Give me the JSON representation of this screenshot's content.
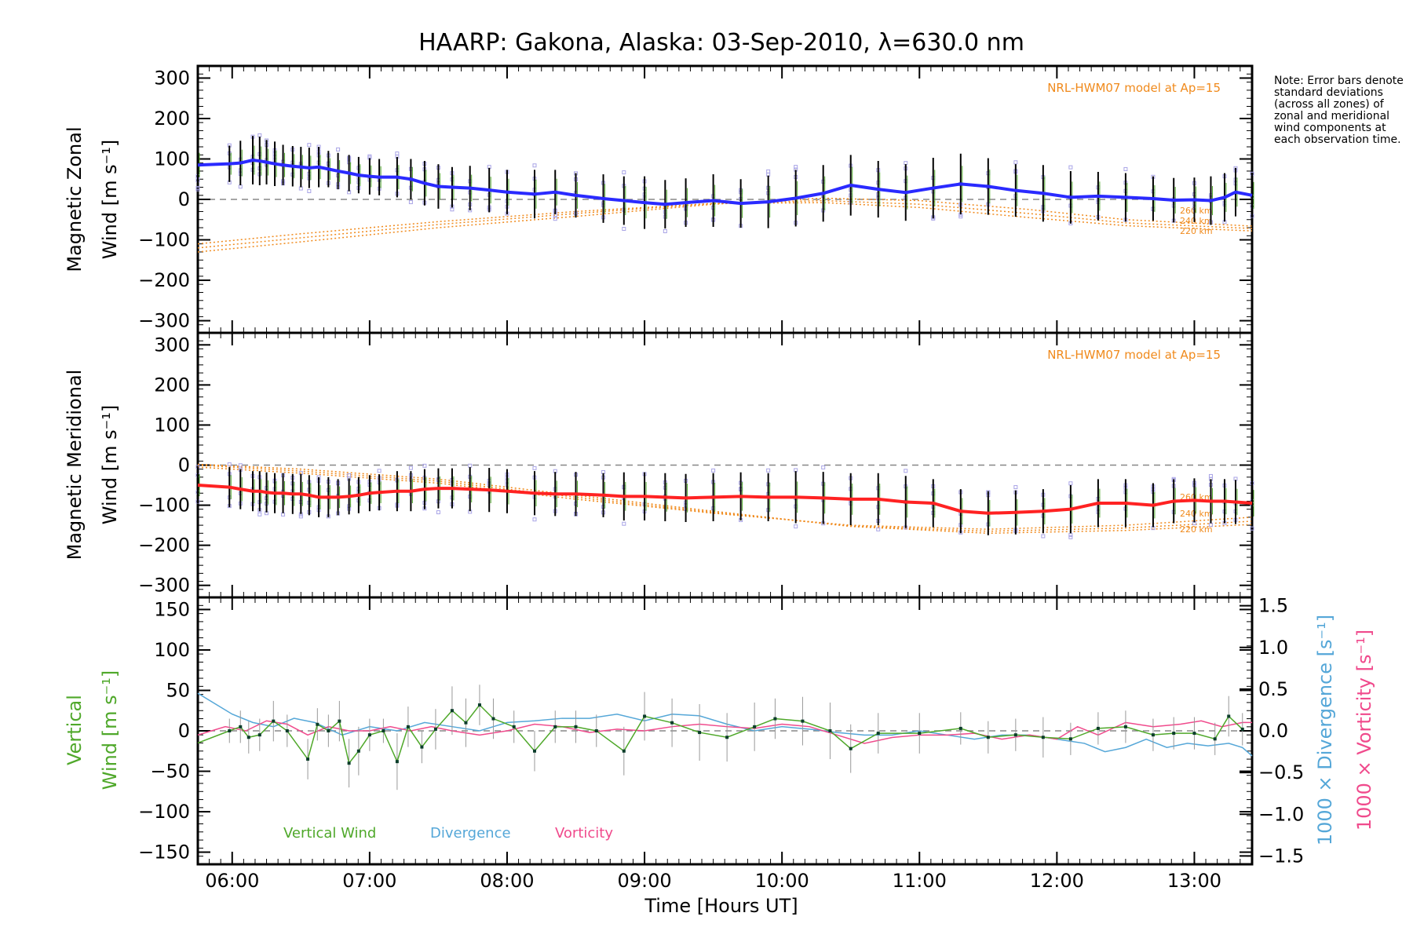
{
  "title": "HAARP: Gakona,  Alaska: 03-Sep-2010, λ=630.0 nm",
  "note": "Note: Error bars denote standard deviations (across all zones) of zonal and meridional wind components at each observation time.",
  "xlabel": "Time [Hours UT]",
  "colors": {
    "zonal": "#2a2aff",
    "meridional": "#ff2222",
    "model": "#f08a1c",
    "samples": "#a9a4e6",
    "vertical": "#4fa82a",
    "divergence": "#55a7d8",
    "vorticity": "#f04a8c"
  },
  "chart_data": [
    {
      "type": "line",
      "panel": "zonal",
      "ylabel_line1": "Magnetic Zonal",
      "ylabel_line2": "Wind [m s⁻¹]",
      "xlim": [
        5.75,
        13.42
      ],
      "ylim": [
        -330,
        330
      ],
      "x_ticks": [
        6,
        7,
        8,
        9,
        10,
        11,
        12,
        13
      ],
      "x_tick_labels": [
        "06:00",
        "07:00",
        "08:00",
        "09:00",
        "10:00",
        "11:00",
        "12:00",
        "13:00"
      ],
      "y_ticks": [
        -300,
        -200,
        -100,
        0,
        100,
        200,
        300
      ],
      "model_label": "NRL-HWM07 model at Ap=15",
      "model_altitudes": [
        "260 km",
        "240 km",
        "220 km"
      ],
      "series": [
        {
          "x": [
            5.75,
            5.98,
            6.06,
            6.15,
            6.2,
            6.25,
            6.31,
            6.37,
            6.44,
            6.5,
            6.56,
            6.63,
            6.7,
            6.77,
            6.85,
            6.92,
            7.0,
            7.07,
            7.2,
            7.3,
            7.4,
            7.5,
            7.6,
            7.73,
            7.87,
            8.0,
            8.2,
            8.35,
            8.5,
            8.7,
            8.85,
            9.0,
            9.15,
            9.3,
            9.5,
            9.7,
            9.9,
            10.1,
            10.3,
            10.5,
            10.7,
            10.9,
            11.1,
            11.3,
            11.5,
            11.7,
            11.9,
            12.1,
            12.3,
            12.5,
            12.7,
            12.85,
            13.0,
            13.12,
            13.22,
            13.3,
            13.42
          ],
          "values": [
            85,
            88,
            90,
            97,
            95,
            92,
            88,
            85,
            82,
            80,
            78,
            80,
            75,
            70,
            65,
            60,
            57,
            55,
            55,
            50,
            40,
            32,
            30,
            28,
            23,
            18,
            13,
            18,
            10,
            2,
            -3,
            -8,
            -12,
            -8,
            -3,
            -10,
            -6,
            3,
            15,
            35,
            25,
            17,
            28,
            38,
            32,
            22,
            15,
            5,
            8,
            5,
            2,
            -2,
            -1,
            -3,
            5,
            18,
            10
          ],
          "error": [
            50,
            45,
            55,
            60,
            60,
            55,
            55,
            50,
            50,
            50,
            50,
            50,
            45,
            45,
            45,
            45,
            45,
            45,
            50,
            50,
            55,
            55,
            50,
            55,
            55,
            55,
            60,
            55,
            55,
            60,
            60,
            65,
            60,
            60,
            65,
            60,
            65,
            70,
            70,
            75,
            70,
            70,
            75,
            75,
            70,
            65,
            70,
            65,
            60,
            60,
            55,
            55,
            55,
            60,
            60,
            60,
            55
          ]
        }
      ],
      "model_curves": [
        {
          "x": [
            5.75,
            6.5,
            7.5,
            8.5,
            9.5,
            10.3,
            11.0,
            11.8,
            12.5,
            13.42
          ],
          "values": [
            -110,
            -85,
            -55,
            -30,
            -10,
            -8,
            -20,
            -45,
            -65,
            -78
          ]
        },
        {
          "x": [
            5.75,
            6.5,
            7.5,
            8.5,
            9.5,
            10.3,
            11.0,
            11.8,
            12.5,
            13.42
          ],
          "values": [
            -120,
            -95,
            -62,
            -35,
            -10,
            -3,
            -12,
            -35,
            -58,
            -72
          ]
        },
        {
          "x": [
            5.75,
            6.5,
            7.5,
            8.5,
            9.5,
            10.3,
            11.0,
            11.8,
            12.5,
            13.42
          ],
          "values": [
            -130,
            -105,
            -70,
            -42,
            -12,
            3,
            -3,
            -25,
            -50,
            -66
          ]
        }
      ]
    },
    {
      "type": "line",
      "panel": "meridional",
      "ylabel_line1": "Magnetic Meridional",
      "ylabel_line2": "Wind [m s⁻¹]",
      "xlim": [
        5.75,
        13.42
      ],
      "ylim": [
        -330,
        330
      ],
      "y_ticks": [
        -300,
        -200,
        -100,
        0,
        100,
        200,
        300
      ],
      "model_label": "NRL-HWM07 model at Ap=15",
      "model_altitudes": [
        "260 km",
        "240 km",
        "220 km"
      ],
      "series": [
        {
          "x": [
            5.75,
            5.98,
            6.06,
            6.15,
            6.2,
            6.25,
            6.31,
            6.37,
            6.44,
            6.5,
            6.56,
            6.63,
            6.7,
            6.77,
            6.85,
            6.92,
            7.0,
            7.07,
            7.2,
            7.3,
            7.4,
            7.5,
            7.6,
            7.73,
            7.87,
            8.0,
            8.2,
            8.35,
            8.5,
            8.7,
            8.85,
            9.0,
            9.15,
            9.3,
            9.5,
            9.7,
            9.9,
            10.1,
            10.3,
            10.5,
            10.7,
            10.9,
            11.1,
            11.3,
            11.5,
            11.7,
            11.9,
            12.1,
            12.3,
            12.5,
            12.7,
            12.85,
            13.0,
            13.12,
            13.22,
            13.3,
            13.42
          ],
          "values": [
            -50,
            -55,
            -60,
            -65,
            -65,
            -68,
            -70,
            -70,
            -72,
            -72,
            -75,
            -80,
            -80,
            -80,
            -78,
            -75,
            -70,
            -68,
            -65,
            -65,
            -60,
            -58,
            -58,
            -60,
            -62,
            -65,
            -70,
            -72,
            -72,
            -75,
            -78,
            -78,
            -80,
            -82,
            -80,
            -78,
            -80,
            -80,
            -82,
            -85,
            -85,
            -92,
            -95,
            -115,
            -120,
            -118,
            -115,
            -110,
            -95,
            -95,
            -100,
            -90,
            -88,
            -90,
            -90,
            -92,
            -95
          ],
          "error": [
            45,
            50,
            50,
            50,
            50,
            50,
            50,
            50,
            50,
            50,
            50,
            50,
            50,
            45,
            45,
            45,
            45,
            45,
            50,
            50,
            50,
            50,
            50,
            55,
            55,
            55,
            55,
            55,
            55,
            55,
            60,
            60,
            60,
            60,
            60,
            60,
            60,
            65,
            65,
            65,
            65,
            65,
            60,
            55,
            55,
            55,
            55,
            60,
            60,
            60,
            55,
            55,
            55,
            55,
            55,
            55,
            55
          ]
        }
      ],
      "model_curves": [
        {
          "x": [
            5.75,
            6.5,
            7.5,
            8.5,
            9.5,
            10.5,
            11.5,
            12.5,
            13.42
          ],
          "values": [
            -5,
            -20,
            -45,
            -85,
            -120,
            -150,
            -160,
            -150,
            -130
          ]
        },
        {
          "x": [
            5.75,
            6.5,
            7.5,
            8.5,
            9.5,
            10.5,
            11.5,
            12.5,
            13.42
          ],
          "values": [
            0,
            -15,
            -40,
            -80,
            -118,
            -152,
            -165,
            -157,
            -140
          ]
        },
        {
          "x": [
            5.75,
            6.5,
            7.5,
            8.5,
            9.5,
            10.5,
            11.5,
            12.5,
            13.42
          ],
          "values": [
            2,
            -10,
            -35,
            -75,
            -115,
            -153,
            -170,
            -163,
            -148
          ]
        }
      ]
    },
    {
      "type": "line",
      "panel": "vertical",
      "ylabel_line1": "Vertical",
      "ylabel_line2": "Wind [m s⁻¹]",
      "y2label_1": "1000 × Divergence [s⁻¹]",
      "y2label_2": "1000 × Vorticity [s⁻¹]",
      "xlim": [
        5.75,
        13.42
      ],
      "ylim": [
        -165,
        165
      ],
      "y2lim": [
        -1.6,
        1.6
      ],
      "y_ticks": [
        -150,
        -100,
        -50,
        0,
        50,
        100,
        150
      ],
      "y2_ticks": [
        -1.5,
        -1.0,
        -0.5,
        0.0,
        0.5,
        1.0,
        1.5
      ],
      "y2_tick_labels": [
        "−1.5",
        "−1.0",
        "−0.5",
        "0.0",
        "0.5",
        "1.0",
        "1.5"
      ],
      "legend": [
        "Vertical Wind",
        "Divergence",
        "Vorticity"
      ],
      "series": [
        {
          "name": "Vertical Wind",
          "axis": "left",
          "x": [
            5.75,
            5.98,
            6.06,
            6.12,
            6.2,
            6.3,
            6.4,
            6.55,
            6.62,
            6.7,
            6.78,
            6.85,
            6.92,
            7.0,
            7.1,
            7.2,
            7.28,
            7.38,
            7.48,
            7.6,
            7.7,
            7.8,
            7.9,
            8.05,
            8.2,
            8.35,
            8.5,
            8.65,
            8.85,
            9.0,
            9.2,
            9.4,
            9.6,
            9.8,
            9.95,
            10.15,
            10.35,
            10.5,
            10.7,
            11.0,
            11.3,
            11.5,
            11.7,
            11.9,
            12.1,
            12.3,
            12.5,
            12.7,
            12.85,
            13.0,
            13.15,
            13.25,
            13.35
          ],
          "values": [
            -15,
            0,
            5,
            -8,
            -5,
            12,
            0,
            -35,
            8,
            0,
            12,
            -40,
            -25,
            -5,
            0,
            -38,
            5,
            -20,
            2,
            25,
            10,
            32,
            15,
            5,
            -25,
            5,
            5,
            0,
            -25,
            18,
            10,
            -2,
            -8,
            5,
            15,
            12,
            0,
            -22,
            -3,
            -3,
            3,
            -8,
            -5,
            -8,
            -10,
            3,
            5,
            -5,
            -3,
            -3,
            -10,
            18,
            2
          ],
          "error": [
            0,
            15,
            20,
            20,
            20,
            25,
            20,
            25,
            20,
            20,
            25,
            30,
            30,
            20,
            15,
            35,
            25,
            20,
            25,
            30,
            30,
            25,
            25,
            20,
            25,
            20,
            20,
            20,
            30,
            30,
            30,
            35,
            30,
            30,
            25,
            30,
            35,
            30,
            25,
            25,
            20,
            20,
            20,
            25,
            20,
            20,
            20,
            20,
            20,
            20,
            20,
            25,
            20
          ]
        },
        {
          "name": "Divergence",
          "axis": "right",
          "x": [
            5.75,
            5.9,
            6.0,
            6.15,
            6.3,
            6.45,
            6.6,
            6.8,
            7.0,
            7.2,
            7.4,
            7.6,
            7.8,
            8.0,
            8.2,
            8.4,
            8.6,
            8.8,
            9.0,
            9.2,
            9.4,
            9.6,
            9.8,
            10.0,
            10.2,
            10.4,
            10.6,
            10.8,
            11.0,
            11.2,
            11.4,
            11.6,
            11.8,
            12.0,
            12.2,
            12.35,
            12.5,
            12.65,
            12.8,
            12.95,
            13.1,
            13.25,
            13.35,
            13.42
          ],
          "values": [
            0.45,
            0.3,
            0.2,
            0.1,
            0.05,
            0.15,
            0.1,
            -0.05,
            0.05,
            0.0,
            0.1,
            0.05,
            0.0,
            0.1,
            0.12,
            0.15,
            0.15,
            0.2,
            0.12,
            0.2,
            0.18,
            0.08,
            0.0,
            0.05,
            0.02,
            -0.02,
            -0.05,
            -0.05,
            0.0,
            -0.05,
            -0.1,
            -0.05,
            -0.05,
            -0.1,
            -0.15,
            -0.25,
            -0.2,
            -0.1,
            -0.2,
            -0.15,
            -0.18,
            -0.15,
            -0.2,
            -0.3
          ]
        },
        {
          "name": "Vorticity",
          "axis": "right",
          "x": [
            5.75,
            5.95,
            6.1,
            6.25,
            6.4,
            6.55,
            6.7,
            6.85,
            7.0,
            7.15,
            7.3,
            7.45,
            7.6,
            7.8,
            8.0,
            8.2,
            8.4,
            8.6,
            8.8,
            9.0,
            9.2,
            9.4,
            9.6,
            9.8,
            10.0,
            10.2,
            10.4,
            10.6,
            10.8,
            11.0,
            11.2,
            11.4,
            11.6,
            11.8,
            12.0,
            12.15,
            12.3,
            12.5,
            12.7,
            12.9,
            13.05,
            13.2,
            13.35,
            13.42
          ],
          "values": [
            -0.05,
            0.05,
            0.0,
            0.12,
            0.08,
            -0.05,
            0.05,
            0.0,
            0.0,
            0.05,
            0.0,
            0.05,
            0.0,
            -0.05,
            0.0,
            0.08,
            0.05,
            -0.02,
            0.02,
            0.0,
            0.05,
            0.08,
            0.05,
            0.03,
            0.08,
            0.05,
            -0.05,
            -0.15,
            -0.08,
            -0.05,
            -0.05,
            -0.03,
            -0.1,
            -0.05,
            -0.1,
            0.05,
            -0.05,
            0.1,
            0.05,
            0.08,
            0.12,
            0.05,
            0.1,
            0.1
          ]
        }
      ]
    }
  ]
}
